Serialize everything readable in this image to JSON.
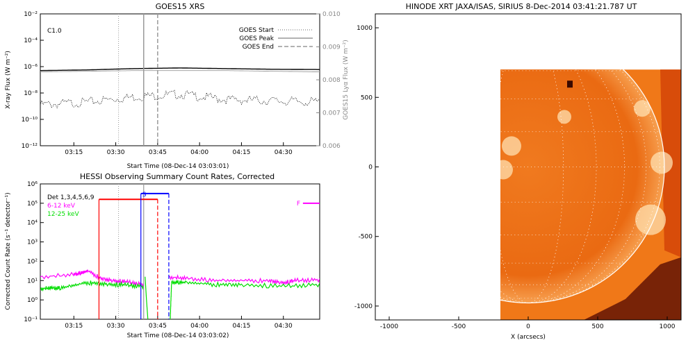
{
  "chart_data": [
    {
      "type": "line",
      "title": "GOES15 XRS",
      "annotation": "C1.0",
      "xlabel": "Start Time (08-Dec-14 03:03:01)",
      "ylabel": "X-ray Flux (W m⁻²)",
      "ylabel2": "GOES15 Lyα Flux (W m⁻²)",
      "x_ticks": [
        "03:15",
        "03:30",
        "03:45",
        "04:00",
        "04:15",
        "04:30"
      ],
      "x_ticks_min": [
        195,
        210,
        225,
        240,
        255,
        270
      ],
      "xlim_min": [
        183,
        283
      ],
      "ylim_log": [
        -12,
        -2
      ],
      "y_ticks": [
        "10⁻²",
        "10⁻⁴",
        "10⁻⁶",
        "10⁻⁸",
        "10⁻¹⁰",
        "10⁻¹²"
      ],
      "y_ticks_exp": [
        -2,
        -4,
        -6,
        -8,
        -10,
        -12
      ],
      "y2lim": [
        0.006,
        0.01
      ],
      "y2_ticks": [
        "0.010",
        "0.009",
        "0.008",
        "0.007",
        "0.006"
      ],
      "y2_ticks_val": [
        0.01,
        0.009,
        0.008,
        0.007,
        0.006
      ],
      "series": [
        {
          "key": "long",
          "color": "#000000",
          "exp": [
            -6.3,
            -6.25,
            -6.15,
            -6.1,
            -6.15,
            -6.2,
            -6.22
          ]
        },
        {
          "key": "short",
          "color": "#000000",
          "exp": [
            -8.9,
            -8.7,
            -8.3,
            -8.1,
            -8.5,
            -8.6,
            -8.7
          ]
        },
        {
          "key": "lya",
          "color": "#999999",
          "exp": [
            -6.4,
            -6.35,
            -6.3,
            -6.3,
            -6.3,
            -6.35,
            -6.4
          ]
        }
      ],
      "legend": [
        {
          "label": "GOES Start",
          "style": "dotted"
        },
        {
          "label": "GOES Peak",
          "style": "solid"
        },
        {
          "label": "GOES End",
          "style": "dashed"
        }
      ],
      "vlines_min": {
        "start": 211,
        "peak": 220,
        "end": 225
      }
    },
    {
      "type": "line",
      "title": "HESSI Observing Summary Count Rates, Corrected",
      "xlabel": "Start Time (08-Dec-14 03:03:02)",
      "ylabel": "Corrected Count Rate (s⁻¹ detector⁻¹)",
      "x_ticks": [
        "03:15",
        "03:30",
        "03:45",
        "04:00",
        "04:15",
        "04:30"
      ],
      "ylim_log": [
        -1,
        6
      ],
      "y_ticks": [
        "10⁶",
        "10⁵",
        "10⁴",
        "10³",
        "10²",
        "10¹",
        "10⁰",
        "10⁻¹"
      ],
      "y_ticks_exp": [
        6,
        5,
        4,
        3,
        2,
        1,
        0,
        -1
      ],
      "legend": [
        {
          "label": "Det 1,3,4,5,6,9",
          "color": "#000000"
        },
        {
          "label": "6-12 keV",
          "color": "#ff00ff"
        },
        {
          "label": "12-25 keV",
          "color": "#00dd00"
        }
      ],
      "series": [
        {
          "name": "6-12 keV",
          "color": "#ff00ff",
          "segments": [
            {
              "t": [
                183,
                195,
                198,
                200,
                205,
                210,
                215,
                220
              ],
              "exp": [
                1.2,
                1.3,
                1.4,
                1.5,
                1.1,
                1.0,
                0.9,
                0.8
              ]
            },
            {
              "t": [
                229,
                235,
                245,
                255,
                265,
                270,
                275,
                283
              ],
              "exp": [
                1.2,
                1.1,
                1.0,
                1.0,
                1.0,
                0.9,
                1.0,
                1.05
              ]
            }
          ]
        },
        {
          "name": "12-25 keV",
          "color": "#00dd00",
          "segments": [
            {
              "t": [
                183,
                190,
                200,
                210,
                220
              ],
              "exp": [
                0.6,
                0.6,
                0.9,
                0.8,
                0.7
              ]
            },
            {
              "t": [
                220.5,
                221,
                221.5
              ],
              "exp": [
                1.2,
                0.0,
                -1.0
              ]
            },
            {
              "t": [
                229.5,
                230,
                235,
                245,
                255,
                270,
                283
              ],
              "exp": [
                -1,
                0.9,
                0.9,
                0.8,
                0.8,
                0.7,
                0.8
              ]
            }
          ]
        }
      ],
      "flag_bars": [
        {
          "label": "",
          "color": "#ff0000",
          "t0": 204,
          "t1": 225,
          "exp": 5.2,
          "vstyle": "solid,dashed"
        },
        {
          "label": "S",
          "color": "#0000ff",
          "t0": 219,
          "t1": 229,
          "exp": 5.5,
          "vstyle": "solid,dashed"
        },
        {
          "label": "F",
          "color": "#ff00ff",
          "t0": 277,
          "t1": 283,
          "exp": 5.0,
          "vstyle": "none"
        }
      ],
      "vlines_min": {
        "goes_start": 211,
        "goes_peak": 220
      }
    },
    {
      "type": "heatmap",
      "title": "HINODE XRT JAXA/ISAS, SIRIUS   8-Dec-2014 03:41:21.787 UT",
      "xlabel": "X (arcsecs)",
      "ylabel": "",
      "xlim": [
        -1100,
        1100
      ],
      "ylim": [
        -1100,
        1100
      ],
      "x_ticks": [
        -1000,
        -500,
        0,
        500,
        1000
      ],
      "y_ticks": [
        1000,
        500,
        0,
        -500,
        -1000
      ],
      "field_of_view": {
        "x": [
          -200,
          1100
        ],
        "y": [
          -1100,
          700
        ]
      },
      "solar_radius": 980,
      "colors": {
        "disk": "#e8650e",
        "background_offlimb": "#f07818",
        "dark": "#6a1a05",
        "grid": "#ffffff"
      }
    }
  ]
}
